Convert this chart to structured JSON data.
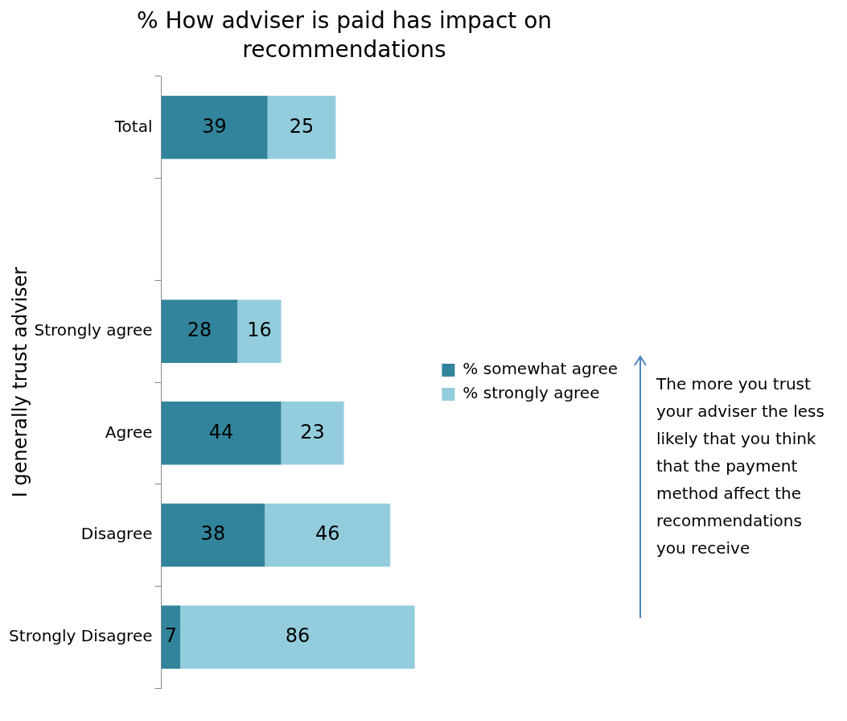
{
  "chart_data": {
    "type": "bar",
    "orientation": "horizontal",
    "stacked": true,
    "title": "% How adviser is paid has impact on recommendations",
    "ylabel": "I generally trust adviser",
    "categories": [
      "Total",
      null,
      "Strongly agree",
      "Agree",
      "Disagree",
      "Strongly Disagree"
    ],
    "series": [
      {
        "name": "% somewhat agree",
        "color": "#31849b",
        "values": [
          39,
          null,
          28,
          44,
          38,
          7
        ]
      },
      {
        "name": "% strongly agree",
        "color": "#93cddd",
        "values": [
          25,
          null,
          16,
          23,
          46,
          86
        ]
      }
    ],
    "data_labels": true,
    "legend": "right",
    "grid": false,
    "tick_labels": "y",
    "annotations": [
      "The more you trust your adviser the less likely that you think that the payment  method affect the recommendations you receive"
    ]
  }
}
